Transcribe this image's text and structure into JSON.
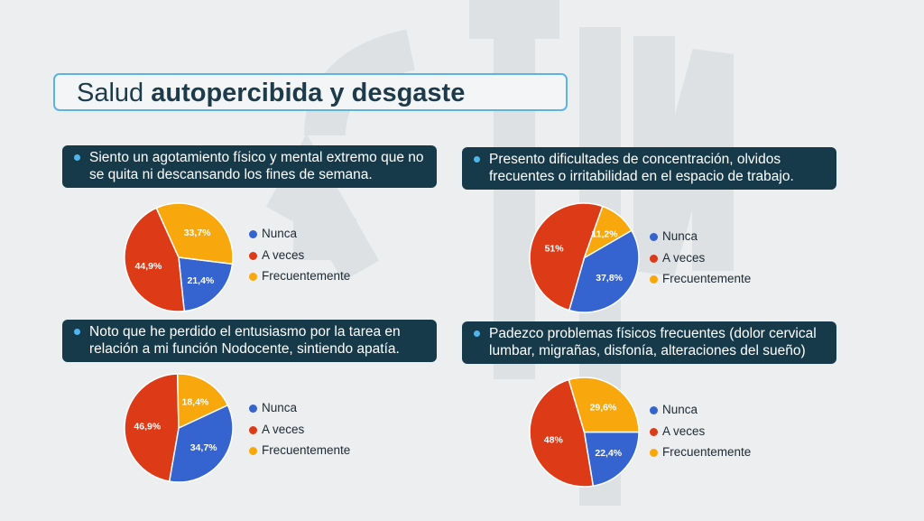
{
  "title": {
    "regular": "Salud",
    "bold": "autopercibida y desgaste"
  },
  "colors": {
    "nunca": "#3563d0",
    "aveces": "#dd3a17",
    "frecuentemente": "#f8a70c",
    "panel": "#163a4a",
    "accent": "#4fb5ea"
  },
  "legend_labels": [
    "Nunca",
    "A veces",
    "Frecuentemente"
  ],
  "chart_data": [
    {
      "type": "pie",
      "title": "Siento un agotamiento físico y mental extremo que no se quita ni descansando los fines de semana.",
      "categories": [
        "Nunca",
        "A veces",
        "Frecuentemente"
      ],
      "values": [
        21.4,
        44.9,
        33.7
      ],
      "labels": [
        "21,4%",
        "44,9%",
        "33,7%"
      ],
      "legend_position": "right"
    },
    {
      "type": "pie",
      "title": "Presento dificultades de concentración, olvidos frecuentes o irritabilidad en el espacio de trabajo.",
      "categories": [
        "Nunca",
        "A veces",
        "Frecuentemente"
      ],
      "values": [
        37.8,
        51,
        11.2
      ],
      "labels": [
        "37,8%",
        "51%",
        "11,2%"
      ],
      "legend_position": "right"
    },
    {
      "type": "pie",
      "title": "Noto que he perdido el entusiasmo por la tarea en relación a mi función Nodocente, sintiendo apatía.",
      "categories": [
        "Nunca",
        "A veces",
        "Frecuentemente"
      ],
      "values": [
        34.7,
        46.9,
        18.4
      ],
      "labels": [
        "34,7%",
        "46,9%",
        "18,4%"
      ],
      "legend_position": "right"
    },
    {
      "type": "pie",
      "title": "Padezco problemas físicos frecuentes (dolor cervical lumbar, migrañas, disfonía, alteraciones del sueño)",
      "categories": [
        "Nunca",
        "A veces",
        "Frecuentemente"
      ],
      "values": [
        22.4,
        48,
        29.6
      ],
      "labels": [
        "22,4%",
        "48%",
        "29,6%"
      ],
      "legend_position": "right"
    }
  ]
}
